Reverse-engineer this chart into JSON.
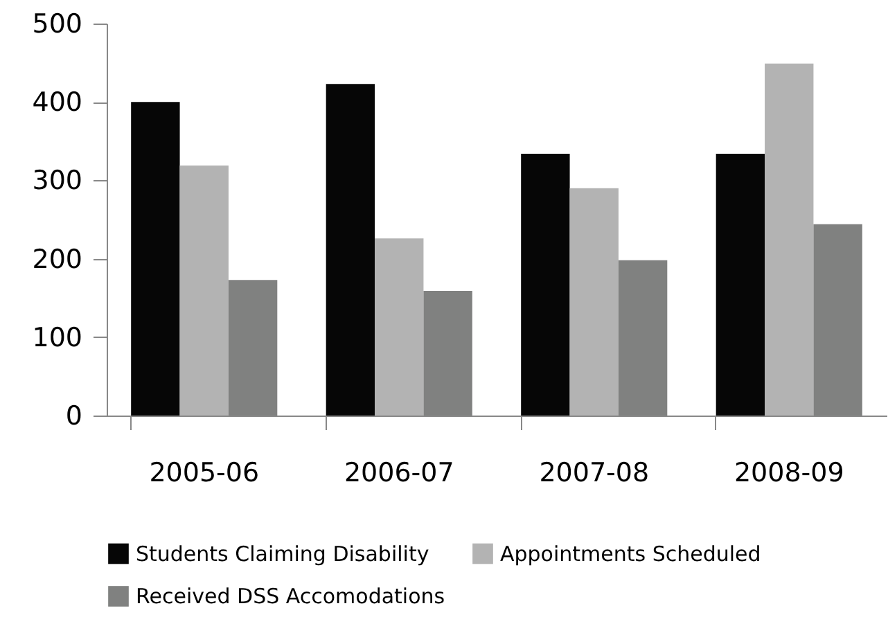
{
  "chart_data": {
    "type": "bar",
    "categories": [
      "2005-06",
      "2006-07",
      "2007-08",
      "2008-09"
    ],
    "series": [
      {
        "name": "Students Claiming Disability",
        "color": "#060606",
        "values": [
          400,
          423,
          334,
          334
        ]
      },
      {
        "name": "Appointments Scheduled",
        "color": "#b3b3b3",
        "values": [
          319,
          226,
          290,
          449
        ]
      },
      {
        "name": "Received DSS Accomodations",
        "color": "#808180",
        "values": [
          173,
          159,
          198,
          244
        ]
      }
    ],
    "ylim": [
      0,
      500
    ],
    "yticks": [
      0,
      100,
      200,
      300,
      400,
      500
    ],
    "grid": false,
    "legend": "bottom"
  }
}
